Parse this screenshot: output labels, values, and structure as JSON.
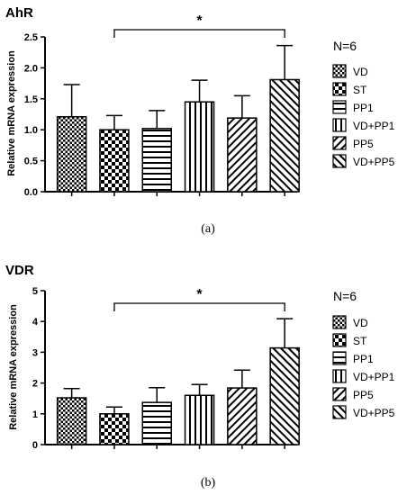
{
  "chart_data": [
    {
      "type": "bar",
      "title": "AhR",
      "ylabel": "Relative mRNA expression",
      "xlabel": "",
      "ylim": [
        0,
        2.5
      ],
      "yticks": [
        "0.0",
        "0.5",
        "1.0",
        "1.5",
        "2.0",
        "2.5"
      ],
      "categories": [
        "VD",
        "ST",
        "PP1",
        "VD+PP1",
        "PP5",
        "VD+PP5"
      ],
      "values": [
        1.21,
        1.0,
        1.02,
        1.45,
        1.19,
        1.81
      ],
      "errors": [
        0.52,
        0.23,
        0.29,
        0.35,
        0.36,
        0.55
      ],
      "legend_note": "N=6",
      "legend_position": "right",
      "significance": {
        "from": "ST",
        "to": "VD+PP5",
        "label": "*"
      },
      "caption": "(a)",
      "grid": false
    },
    {
      "type": "bar",
      "title": "VDR",
      "ylabel": "Relative mRNA expression",
      "xlabel": "",
      "ylim": [
        0,
        5
      ],
      "yticks": [
        "0",
        "1",
        "2",
        "3",
        "4",
        "5"
      ],
      "categories": [
        "VD",
        "ST",
        "PP1",
        "VD+PP1",
        "PP5",
        "VD+PP5"
      ],
      "values": [
        1.52,
        1.0,
        1.37,
        1.6,
        1.84,
        3.14
      ],
      "errors": [
        0.3,
        0.22,
        0.48,
        0.35,
        0.58,
        0.95
      ],
      "legend_note": "N=6",
      "legend_position": "right",
      "significance": {
        "from": "ST",
        "to": "VD+PP5",
        "label": "*"
      },
      "caption": "(b)",
      "grid": false
    }
  ]
}
